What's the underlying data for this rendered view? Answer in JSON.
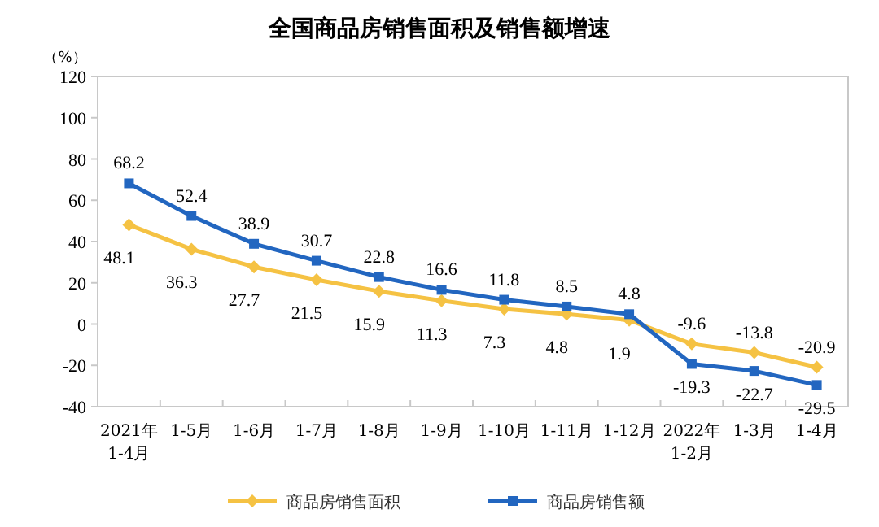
{
  "chart_data": {
    "type": "line",
    "title": "全国商品房销售面积及销售额增速",
    "ylabel": "（%）",
    "categories": [
      "2021年\n1-4月",
      "1-5月",
      "1-6月",
      "1-7月",
      "1-8月",
      "1-9月",
      "1-10月",
      "1-11月",
      "1-12月",
      "2022年\n1-2月",
      "1-3月",
      "1-4月"
    ],
    "series": [
      {
        "name": "商品房销售面积",
        "color": "#f5c243",
        "marker": "diamond",
        "values": [
          48.1,
          36.3,
          27.7,
          21.5,
          15.9,
          11.3,
          7.3,
          4.8,
          1.9,
          -9.6,
          -13.8,
          -20.9
        ]
      },
      {
        "name": "商品房销售额",
        "color": "#2266c0",
        "marker": "square",
        "values": [
          68.2,
          52.4,
          38.9,
          30.7,
          22.8,
          16.6,
          11.8,
          8.5,
          4.8,
          -19.3,
          -22.7,
          -29.5
        ]
      }
    ],
    "ylim": [
      -40,
      120
    ],
    "yticks": [
      -40,
      -20,
      0,
      20,
      40,
      60,
      80,
      100,
      120
    ],
    "data_labels": true,
    "legend": "bottom"
  }
}
